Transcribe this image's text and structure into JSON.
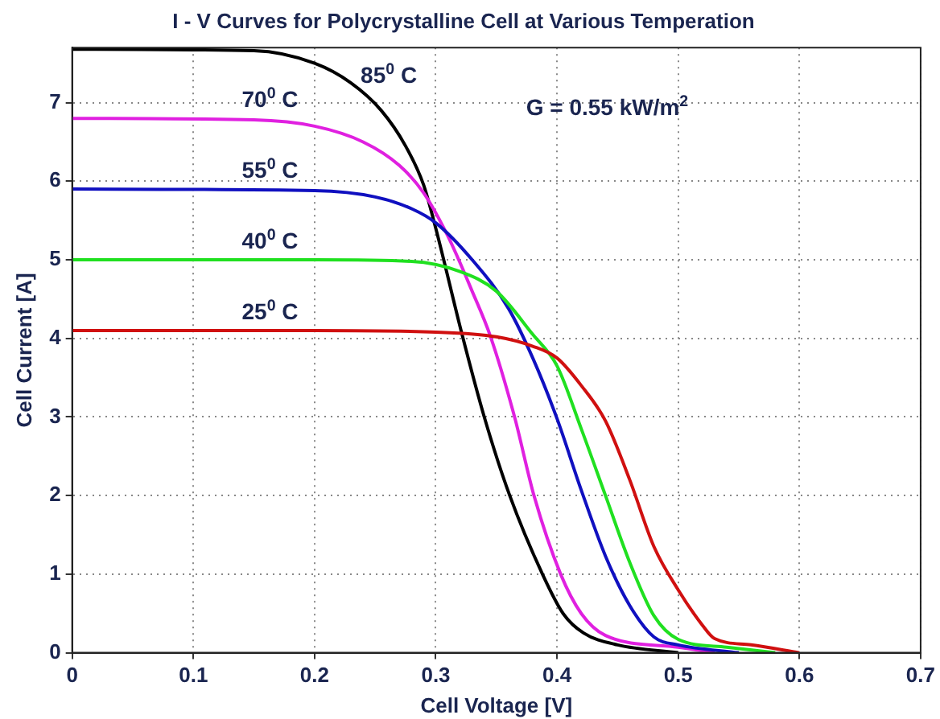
{
  "chart_data": {
    "type": "line",
    "title": "I - V Curves for Polycrystalline Cell at Various Temperation",
    "xlabel": "Cell Voltage [V]",
    "ylabel": "Cell Current [A]",
    "xlim": [
      0,
      0.7
    ],
    "xticks": [
      0,
      0.1,
      0.2,
      0.3,
      0.4,
      0.5,
      0.6,
      0.7
    ],
    "ylim": [
      0,
      7.7
    ],
    "yticks": [
      0,
      1,
      2,
      3,
      4,
      5,
      6,
      7
    ],
    "grid": true,
    "marker": "none",
    "line_style": "solid",
    "annotations": [
      "G = 0.55 kW/m$^{2}$"
    ],
    "series": [
      {
        "name": "25$^{0}$ C",
        "color": "#d01010",
        "x": [
          0,
          0.2,
          0.3,
          0.35,
          0.38,
          0.4,
          0.42,
          0.44,
          0.46,
          0.48,
          0.5,
          0.52,
          0.53,
          0.56,
          0.6
        ],
        "values": [
          4.1,
          4.1,
          4.08,
          4.02,
          3.9,
          3.75,
          3.4,
          2.95,
          2.2,
          1.35,
          0.8,
          0.35,
          0.18,
          0.1,
          0
        ]
      },
      {
        "name": "40$^{0}$ C",
        "color": "#20e020",
        "x": [
          0,
          0.2,
          0.28,
          0.32,
          0.35,
          0.38,
          0.4,
          0.42,
          0.44,
          0.46,
          0.48,
          0.5,
          0.54,
          0.58
        ],
        "values": [
          5,
          5,
          4.98,
          4.85,
          4.6,
          4.05,
          3.65,
          2.85,
          2,
          1.15,
          0.47,
          0.17,
          0.07,
          0
        ]
      },
      {
        "name": "55$^{0}$ C",
        "color": "#1010c0",
        "x": [
          0,
          0.2,
          0.25,
          0.28,
          0.3,
          0.33,
          0.36,
          0.38,
          0.4,
          0.42,
          0.44,
          0.46,
          0.48,
          0.5,
          0.55
        ],
        "values": [
          5.9,
          5.88,
          5.8,
          5.65,
          5.47,
          5,
          4.38,
          3.75,
          2.98,
          2.07,
          1.23,
          0.6,
          0.2,
          0.1,
          0
        ]
      },
      {
        "name": "70$^{0}$ C",
        "color": "#e020e0",
        "x": [
          0,
          0.15,
          0.2,
          0.24,
          0.27,
          0.29,
          0.31,
          0.33,
          0.345,
          0.365,
          0.381,
          0.403,
          0.42,
          0.44,
          0.5,
          0.53
        ],
        "values": [
          6.8,
          6.78,
          6.7,
          6.5,
          6.2,
          5.85,
          5.3,
          4.6,
          4.03,
          3,
          2,
          1,
          0.5,
          0.22,
          0.07,
          0
        ]
      },
      {
        "name": "85$^{0}$ C",
        "color": "#000000",
        "x": [
          0,
          0.15,
          0.2,
          0.23,
          0.255,
          0.275,
          0.29,
          0.3,
          0.322,
          0.34,
          0.361,
          0.388,
          0.405,
          0.422,
          0.45,
          0.5
        ],
        "values": [
          7.68,
          7.66,
          7.5,
          7.25,
          6.9,
          6.45,
          5.95,
          5.4,
          4.03,
          3,
          2,
          1,
          0.5,
          0.25,
          0.1,
          0
        ]
      }
    ]
  }
}
